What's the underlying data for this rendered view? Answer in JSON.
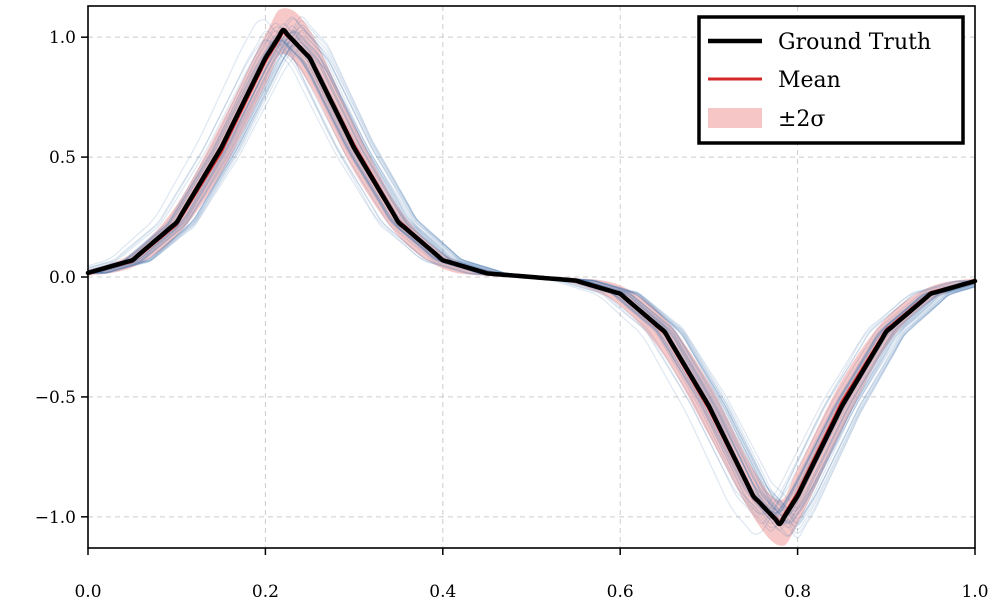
{
  "chart_data": {
    "type": "line",
    "xlim": [
      0.0,
      1.0
    ],
    "ylim": [
      -1.13,
      1.13
    ],
    "x_ticks": [
      "0.0",
      "0.2",
      "0.4",
      "0.6",
      "0.8",
      "1.0"
    ],
    "y_ticks": [
      "1.0",
      "0.5",
      "0.0",
      "−0.5",
      "−1.0"
    ],
    "grid": true,
    "legend_position": "top-right",
    "x": [
      0.0,
      0.05,
      0.1,
      0.15,
      0.2,
      0.22,
      0.25,
      0.3,
      0.35,
      0.4,
      0.45,
      0.5,
      0.55,
      0.6,
      0.65,
      0.7,
      0.75,
      0.78,
      0.8,
      0.85,
      0.9,
      0.95,
      1.0
    ],
    "series": [
      {
        "name": "Ground Truth",
        "color": "#000000",
        "values": [
          0.017,
          0.07,
          0.228,
          0.538,
          0.913,
          1.03,
          0.913,
          0.538,
          0.228,
          0.07,
          0.015,
          0.0,
          -0.015,
          -0.07,
          -0.228,
          -0.538,
          -0.913,
          -1.03,
          -0.913,
          -0.538,
          -0.228,
          -0.07,
          -0.017
        ]
      },
      {
        "name": "Mean",
        "color": "#d62728",
        "values": [
          0.015,
          0.065,
          0.22,
          0.52,
          0.9,
          1.02,
          0.92,
          0.55,
          0.235,
          0.072,
          0.016,
          0.0,
          -0.016,
          -0.072,
          -0.235,
          -0.55,
          -0.92,
          -1.02,
          -0.9,
          -0.52,
          -0.22,
          -0.065,
          -0.015
        ]
      }
    ],
    "band": {
      "name": "±2σ",
      "color": "#f4b6b6",
      "lower": [
        0.005,
        0.04,
        0.17,
        0.43,
        0.8,
        0.93,
        0.8,
        0.44,
        0.17,
        0.035,
        0.004,
        -0.005,
        -0.03,
        -0.12,
        -0.33,
        -0.66,
        -1.0,
        -1.12,
        -1.03,
        -0.64,
        -0.29,
        -0.1,
        -0.03
      ],
      "upper": [
        0.03,
        0.1,
        0.3,
        0.64,
        1.01,
        1.12,
        1.03,
        0.64,
        0.29,
        0.1,
        0.03,
        0.005,
        -0.004,
        -0.035,
        -0.17,
        -0.44,
        -0.8,
        -0.93,
        -0.8,
        -0.43,
        -0.17,
        -0.04,
        -0.005
      ]
    },
    "samples": {
      "count": 40,
      "color": "#4a7ab0"
    },
    "legend": [
      "Ground Truth",
      "Mean",
      "±2σ"
    ]
  }
}
